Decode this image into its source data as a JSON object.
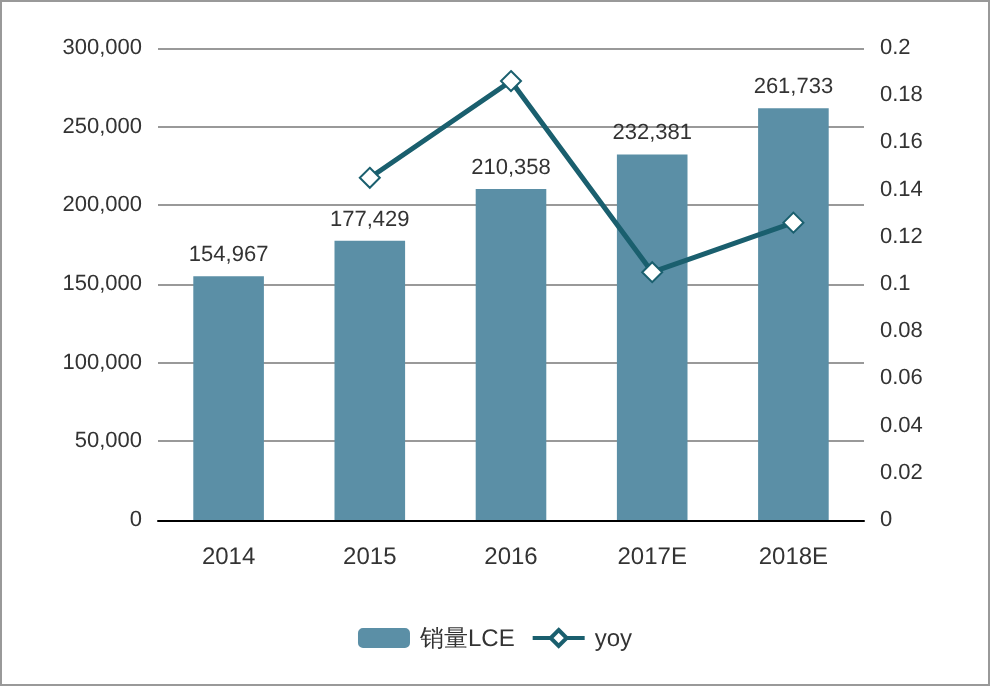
{
  "chart_data": {
    "type": "bar",
    "categories": [
      "2014",
      "2015",
      "2016",
      "2017E",
      "2018E"
    ],
    "series": [
      {
        "name": "销量LCE",
        "color": "#5b8fa6",
        "values": [
          154967,
          177429,
          210358,
          232381,
          261733
        ],
        "value_labels": [
          "154,967",
          "177,429",
          "210,358",
          "232,381",
          "261,733"
        ]
      },
      {
        "name": "yoy",
        "type": "line",
        "axis": "y2",
        "color": "#1a5f6e",
        "values": [
          null,
          0.145,
          0.186,
          0.105,
          0.126
        ],
        "marker": "diamond"
      }
    ],
    "ylim": [
      0,
      300000
    ],
    "yticks": [
      {
        "value": 0,
        "label": "0"
      },
      {
        "value": 50000,
        "label": "50,000"
      },
      {
        "value": 100000,
        "label": "100,000"
      },
      {
        "value": 150000,
        "label": "150,000"
      },
      {
        "value": 200000,
        "label": "200,000"
      },
      {
        "value": 250000,
        "label": "250,000"
      },
      {
        "value": 300000,
        "label": "300,000"
      }
    ],
    "y2lim": [
      0,
      0.2
    ],
    "y2ticks": [
      0,
      0.02,
      0.04,
      0.06,
      0.08,
      0.1,
      0.12,
      0.14,
      0.16,
      0.18,
      0.2
    ],
    "grid": "y",
    "legend": "bottom"
  }
}
